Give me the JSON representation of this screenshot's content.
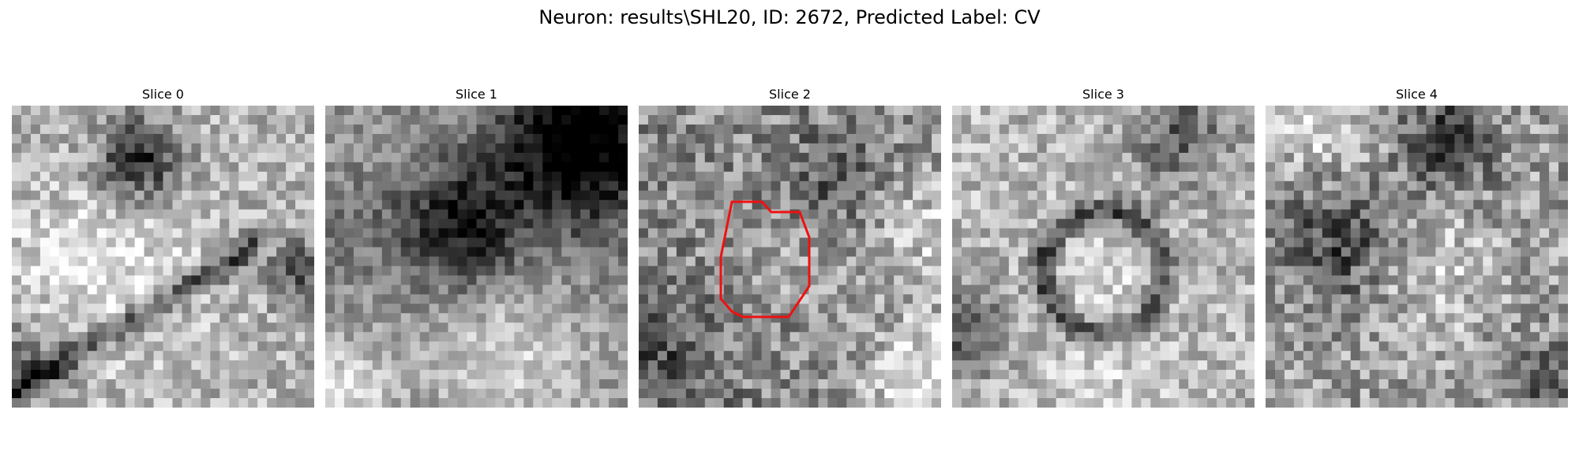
{
  "figure": {
    "title": "Neuron: results\\SHL20, ID: 2672, Predicted Label: CV"
  },
  "panels": [
    {
      "title": "Slice 0",
      "image": "grayscale-em-patch",
      "has_contour": false
    },
    {
      "title": "Slice 1",
      "image": "grayscale-em-patch",
      "has_contour": false
    },
    {
      "title": "Slice 2",
      "image": "grayscale-em-patch",
      "has_contour": true,
      "contour_color": "#ee1111"
    },
    {
      "title": "Slice 3",
      "image": "grayscale-em-patch",
      "has_contour": false
    },
    {
      "title": "Slice 4",
      "image": "grayscale-em-patch",
      "has_contour": false
    }
  ]
}
